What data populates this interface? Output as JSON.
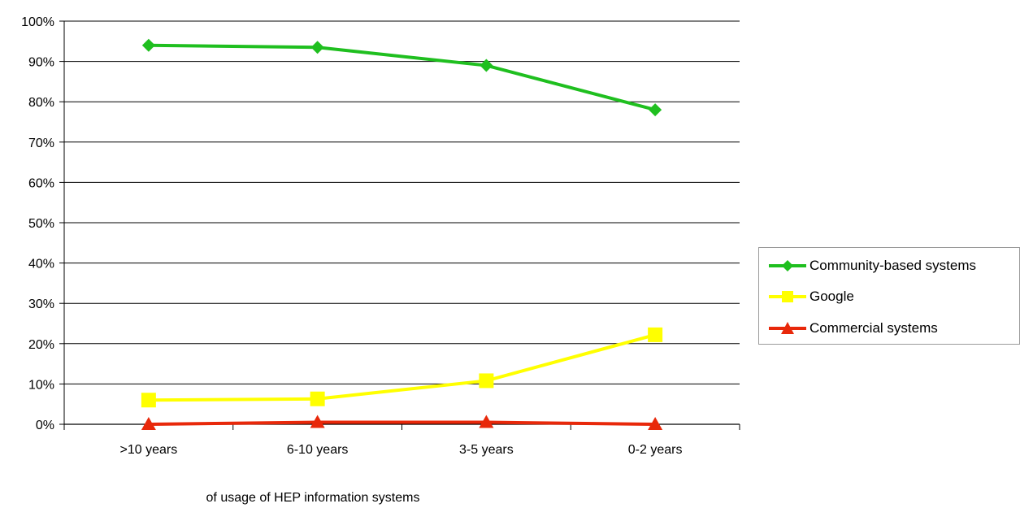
{
  "chart_data": {
    "type": "line",
    "title": "",
    "xlabel": "of usage of HEP information systems",
    "ylabel": "",
    "categories": [
      ">10 years",
      "6-10 years",
      "3-5 years",
      "0-2 years"
    ],
    "ylim": [
      0,
      100
    ],
    "yticks": [
      0,
      10,
      20,
      30,
      40,
      50,
      60,
      70,
      80,
      90,
      100
    ],
    "ytick_labels": [
      "0%",
      "10%",
      "20%",
      "30%",
      "40%",
      "50%",
      "60%",
      "70%",
      "80%",
      "90%",
      "100%"
    ],
    "grid": "horizontal",
    "legend_position": "right",
    "series": [
      {
        "name": "Community-based systems",
        "values": [
          94,
          93.5,
          89,
          78
        ],
        "color": "#1fbf1f",
        "marker": "diamond"
      },
      {
        "name": "Google",
        "values": [
          6,
          6.3,
          10.8,
          22.2
        ],
        "color": "#ffff00",
        "marker": "square"
      },
      {
        "name": "Commercial systems",
        "values": [
          0,
          0.5,
          0.5,
          0
        ],
        "color": "#e8280a",
        "marker": "triangle"
      }
    ]
  }
}
